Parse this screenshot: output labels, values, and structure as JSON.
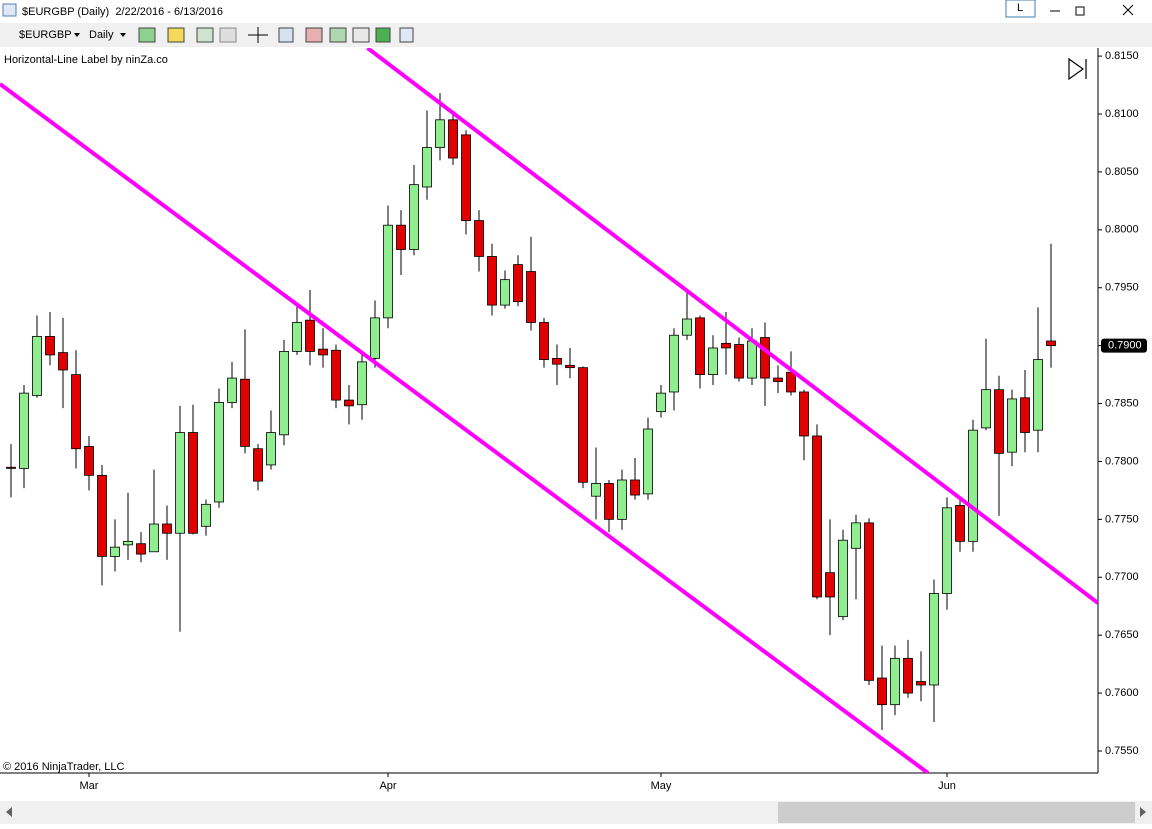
{
  "window": {
    "title": "$EURGBP (Daily)  2/22/2016 - 6/13/2016",
    "button": "L"
  },
  "toolbar": {
    "instrument": "$EURGBP",
    "period": "Daily"
  },
  "chart_data": {
    "type": "candlestick",
    "indicator_label": "Horizontal-Line Label by ninZa.co",
    "copyright": "© 2016 NinjaTrader, LLC",
    "categories": [
      null,
      null,
      null,
      null,
      null,
      null,
      "Mar",
      null,
      null,
      null,
      null,
      null,
      null,
      null,
      null,
      null,
      null,
      null,
      null,
      null,
      null,
      null,
      null,
      null,
      null,
      null,
      null,
      null,
      null,
      "Apr",
      null,
      null,
      null,
      null,
      null,
      null,
      null,
      null,
      null,
      null,
      null,
      null,
      null,
      null,
      null,
      null,
      null,
      null,
      null,
      null,
      "May",
      null,
      null,
      null,
      null,
      null,
      null,
      null,
      null,
      null,
      null,
      null,
      null,
      null,
      null,
      null,
      null,
      null,
      null,
      null,
      null,
      null,
      "Jun",
      null,
      null,
      null,
      null,
      null,
      null,
      null,
      null
    ],
    "open": [
      0.7795,
      0.7794,
      0.7857,
      0.7908,
      0.7894,
      0.7875,
      0.7813,
      0.7788,
      0.7718,
      0.7728,
      0.7729,
      0.7722,
      0.7746,
      0.7738,
      0.7825,
      0.7744,
      0.7765,
      0.7851,
      0.7871,
      0.7811,
      0.7797,
      0.7823,
      0.7895,
      0.7922,
      0.7897,
      0.7896,
      0.7853,
      0.7849,
      0.7889,
      0.7924,
      0.8004,
      0.7983,
      0.8037,
      0.8071,
      0.8095,
      0.8082,
      0.8008,
      0.7977,
      0.7935,
      0.797,
      0.7964,
      0.792,
      0.7889,
      0.7883,
      0.7881,
      0.777,
      0.7781,
      0.775,
      0.7784,
      0.7772,
      0.7843,
      0.786,
      0.7909,
      0.7924,
      0.7875,
      0.7902,
      0.7901,
      0.7872,
      0.7907,
      0.7872,
      0.7877,
      0.786,
      0.7822,
      0.7704,
      0.7666,
      0.7725,
      0.7747,
      0.7613,
      0.759,
      0.763,
      0.761,
      0.7607,
      0.7686,
      0.7762,
      0.7731,
      0.7829,
      0.7862,
      0.7808,
      0.7855,
      0.7827,
      0.7904
    ],
    "high": [
      0.7815,
      0.7866,
      0.7926,
      0.7929,
      0.7924,
      0.7896,
      0.7822,
      0.7797,
      0.775,
      0.7773,
      0.7739,
      0.7793,
      0.7762,
      0.7848,
      0.7849,
      0.7767,
      0.7863,
      0.7886,
      0.7914,
      0.7815,
      0.7844,
      0.7905,
      0.7937,
      0.7948,
      0.7915,
      0.7901,
      0.7866,
      0.7892,
      0.7939,
      0.8021,
      0.8017,
      0.8056,
      0.8103,
      0.8118,
      0.8099,
      0.8086,
      0.8017,
      0.7988,
      0.7965,
      0.7978,
      0.7994,
      0.7924,
      0.7901,
      0.7898,
      0.7882,
      0.7812,
      0.7784,
      0.7793,
      0.7803,
      0.7838,
      0.7866,
      0.7915,
      0.7948,
      0.7926,
      0.7909,
      0.7929,
      0.7907,
      0.7915,
      0.792,
      0.7883,
      0.7895,
      0.7862,
      0.7832,
      0.775,
      0.7741,
      0.7754,
      0.7751,
      0.7641,
      0.7641,
      0.7646,
      0.7636,
      0.7698,
      0.7769,
      0.7767,
      0.7836,
      0.7906,
      0.7874,
      0.7862,
      0.7879,
      0.7933,
      0.7988
    ],
    "low": [
      0.7769,
      0.7777,
      0.7855,
      0.7883,
      0.7846,
      0.7794,
      0.7775,
      0.7693,
      0.7705,
      0.7715,
      0.7713,
      0.7724,
      0.7715,
      0.7653,
      0.7737,
      0.7736,
      0.776,
      0.7846,
      0.7807,
      0.7775,
      0.7793,
      0.7814,
      0.7892,
      0.7883,
      0.7881,
      0.7846,
      0.7832,
      0.7836,
      0.7881,
      0.7915,
      0.7961,
      0.7978,
      0.8026,
      0.806,
      0.8056,
      0.7996,
      0.7964,
      0.7926,
      0.7932,
      0.7934,
      0.7913,
      0.7881,
      0.7866,
      0.7872,
      0.7777,
      0.775,
      0.7739,
      0.7741,
      0.7767,
      0.7767,
      0.7838,
      0.7844,
      0.7905,
      0.7863,
      0.7866,
      0.7875,
      0.7869,
      0.7866,
      0.7848,
      0.7859,
      0.7857,
      0.7801,
      0.7681,
      0.765,
      0.7663,
      0.7681,
      0.7607,
      0.7568,
      0.7581,
      0.7596,
      0.7593,
      0.7575,
      0.7672,
      0.7722,
      0.7722,
      0.7827,
      0.7753,
      0.7796,
      0.7808,
      0.7808,
      0.7881
    ],
    "close": [
      0.7794,
      0.7859,
      0.7908,
      0.7892,
      0.7879,
      0.7811,
      0.7788,
      0.7718,
      0.7726,
      0.7731,
      0.772,
      0.7746,
      0.7738,
      0.7825,
      0.7738,
      0.7763,
      0.7851,
      0.7872,
      0.7813,
      0.7783,
      0.7825,
      0.7895,
      0.792,
      0.7895,
      0.7892,
      0.7853,
      0.7848,
      0.7886,
      0.7924,
      0.8004,
      0.7983,
      0.8039,
      0.8071,
      0.8095,
      0.8062,
      0.8008,
      0.7977,
      0.7935,
      0.7957,
      0.7938,
      0.792,
      0.7888,
      0.7884,
      0.7881,
      0.7782,
      0.7781,
      0.775,
      0.7784,
      0.7771,
      0.7828,
      0.7859,
      0.7909,
      0.7923,
      0.7875,
      0.7898,
      0.7898,
      0.7872,
      0.7904,
      0.7872,
      0.7869,
      0.786,
      0.7822,
      0.7683,
      0.7683,
      0.7732,
      0.7747,
      0.7611,
      0.759,
      0.763,
      0.76,
      0.7607,
      0.7686,
      0.776,
      0.7731,
      0.7827,
      0.7862,
      0.7807,
      0.7854,
      0.7825,
      0.7888,
      0.79
    ],
    "up_color": "#90ee90",
    "down_color": "#e00000",
    "ylim": [
      0.7531,
      0.8157
    ],
    "yticks": [
      {
        "value": 0.755,
        "label": "0.7550"
      },
      {
        "value": 0.76,
        "label": "0.7600"
      },
      {
        "value": 0.765,
        "label": "0.7650"
      },
      {
        "value": 0.77,
        "label": "0.7700"
      },
      {
        "value": 0.775,
        "label": "0.7750"
      },
      {
        "value": 0.78,
        "label": "0.7800"
      },
      {
        "value": 0.785,
        "label": "0.7850"
      },
      {
        "value": 0.79,
        "label": "0.7900"
      },
      {
        "value": 0.795,
        "label": "0.7950"
      },
      {
        "value": 0.8,
        "label": "0.8000"
      },
      {
        "value": 0.805,
        "label": "0.8050"
      },
      {
        "value": 0.81,
        "label": "0.8100"
      },
      {
        "value": 0.815,
        "label": "0.8150"
      }
    ],
    "last_price": {
      "value": 0.79,
      "label": "0.7900"
    },
    "grid": false
  }
}
